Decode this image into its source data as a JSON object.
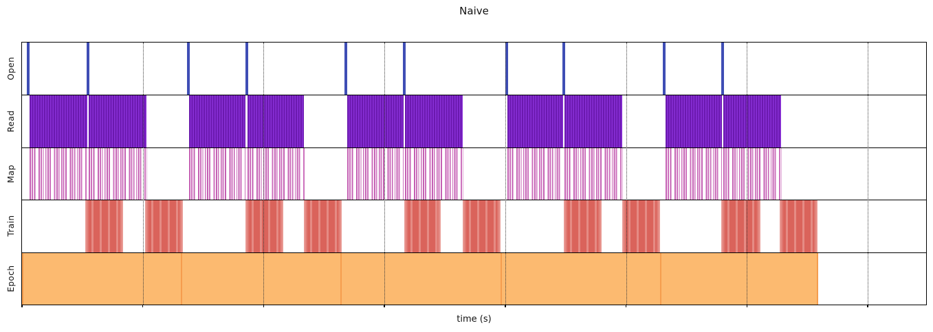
{
  "title": "Naive",
  "xlabel": "time (s)",
  "colors": {
    "open": "#3f4eb5",
    "read_dark": "#6a18ae",
    "read_light": "#8a31d8",
    "map_pink": "#c45fb3",
    "map_pink_light": "#cc6fbc",
    "train_base": "#da635b",
    "train_light": "#e58b84",
    "train_edge": "#eba39d",
    "epoch_fill": "#fcba70",
    "epoch_edge": "#f59d4e",
    "grid": "#3a3a3a",
    "axis": "#000000"
  },
  "chart_data": {
    "type": "timeline",
    "title": "Naive",
    "xlabel": "time (s)",
    "x_axis": {
      "units": "relative time, percent of visible span",
      "range": [
        0,
        100
      ],
      "tick_positions": [
        0,
        13.36,
        26.73,
        40.09,
        53.45,
        66.82,
        80.18,
        93.55
      ],
      "tick_labels_visible": false,
      "grid": "dotted vertical lines at tick positions (except axis origin)"
    },
    "legend": "none",
    "rows": [
      {
        "label": "Open",
        "style": "event-lines",
        "events": [
          0.68,
          7.29,
          18.37,
          24.83,
          35.84,
          42.29,
          53.61,
          59.91,
          71.0,
          77.52
        ]
      },
      {
        "label": "Read",
        "style": "dense-striped-blocks",
        "segments": [
          [
            0.84,
            7.21
          ],
          [
            7.37,
            13.74
          ],
          [
            18.45,
            24.68
          ],
          [
            24.91,
            31.21
          ],
          [
            35.99,
            42.22
          ],
          [
            42.37,
            48.75
          ],
          [
            53.68,
            59.83
          ],
          [
            59.98,
            66.36
          ],
          [
            71.15,
            77.45
          ],
          [
            77.6,
            83.98
          ]
        ]
      },
      {
        "label": "Map",
        "style": "sparse-striped-blocks",
        "segments": [
          [
            0.84,
            7.21
          ],
          [
            7.37,
            13.82
          ],
          [
            18.45,
            24.68
          ],
          [
            24.91,
            31.29
          ],
          [
            35.99,
            42.22
          ],
          [
            42.37,
            48.83
          ],
          [
            53.68,
            59.83
          ],
          [
            59.98,
            66.44
          ],
          [
            71.15,
            77.45
          ],
          [
            77.6,
            84.06
          ]
        ]
      },
      {
        "label": "Train",
        "style": "solid-striped-blocks",
        "segments": [
          [
            6.99,
            11.16
          ],
          [
            13.59,
            17.77
          ],
          [
            24.75,
            28.93
          ],
          [
            31.21,
            35.38
          ],
          [
            42.29,
            46.32
          ],
          [
            48.75,
            52.92
          ],
          [
            59.91,
            64.08
          ],
          [
            66.36,
            70.54
          ],
          [
            77.37,
            81.7
          ],
          [
            83.83,
            88.0
          ]
        ]
      },
      {
        "label": "Epoch",
        "style": "solid-blocks",
        "segments": [
          [
            0.08,
            17.65
          ],
          [
            17.65,
            35.31
          ],
          [
            35.31,
            53.0
          ],
          [
            53.0,
            70.65
          ],
          [
            70.65,
            88.0
          ]
        ]
      }
    ]
  }
}
